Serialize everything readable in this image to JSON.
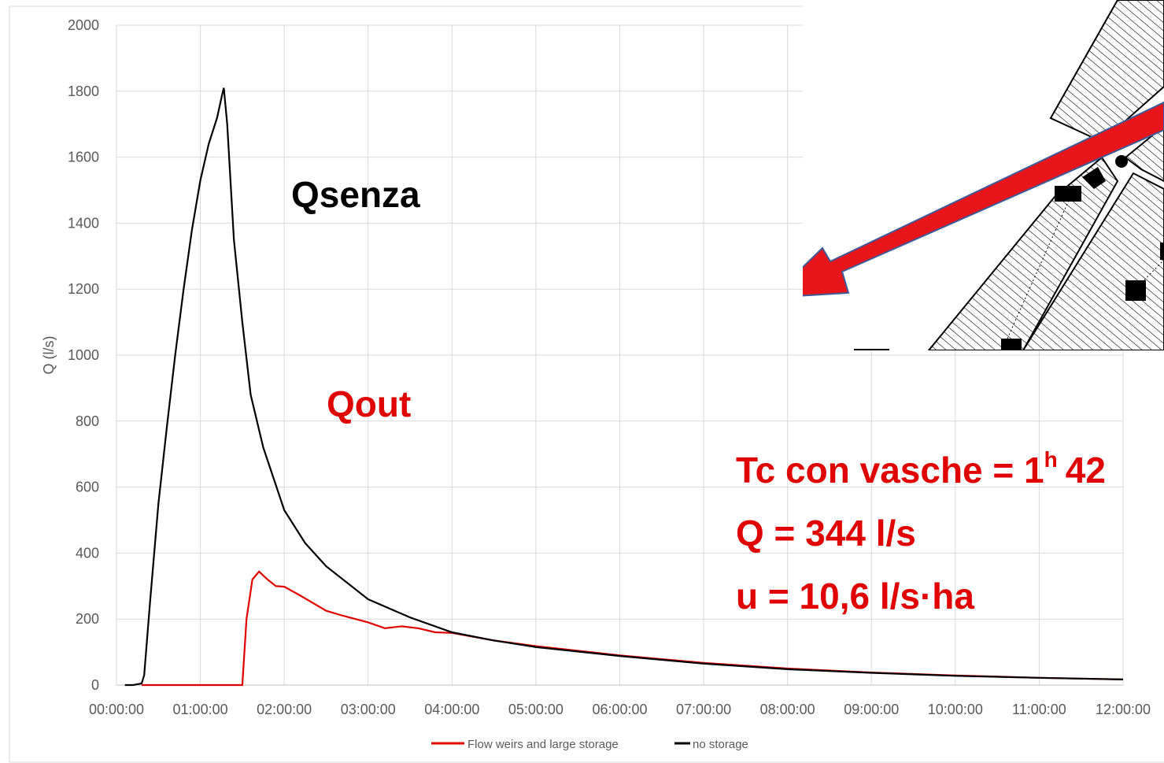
{
  "chart_data": {
    "type": "line",
    "ylabel": "Q (l/s)",
    "xlim": [
      0,
      12
    ],
    "ylim": [
      0,
      2000
    ],
    "yticks": [
      0,
      200,
      400,
      600,
      800,
      1000,
      1200,
      1400,
      1600,
      1800,
      2000
    ],
    "xticks": [
      {
        "value": 0,
        "label": "00:00:00"
      },
      {
        "value": 1,
        "label": "01:00:00"
      },
      {
        "value": 2,
        "label": "02:00:00"
      },
      {
        "value": 3,
        "label": "03:00:00"
      },
      {
        "value": 4,
        "label": "04:00:00"
      },
      {
        "value": 5,
        "label": "05:00:00"
      },
      {
        "value": 6,
        "label": "06:00:00"
      },
      {
        "value": 7,
        "label": "07:00:00"
      },
      {
        "value": 8,
        "label": "08:00:00"
      },
      {
        "value": 9,
        "label": "09:00:00"
      },
      {
        "value": 10,
        "label": "10:00:00"
      },
      {
        "value": 11,
        "label": "11:00:00"
      },
      {
        "value": 12,
        "label": "12:00:00"
      }
    ],
    "grid": true,
    "series": [
      {
        "name": "Flow weirs and large storage",
        "color": "#e00000",
        "x": [
          0.3,
          1.5,
          1.55,
          1.62,
          1.7,
          1.8,
          1.9,
          2.0,
          2.2,
          2.5,
          2.7,
          3.0,
          3.2,
          3.4,
          3.6,
          3.8,
          4.0,
          4.5,
          5,
          6,
          7,
          8,
          9,
          10,
          11,
          12
        ],
        "values": [
          0,
          0,
          200,
          320,
          344,
          320,
          300,
          298,
          270,
          225,
          210,
          190,
          172,
          178,
          172,
          160,
          158,
          135,
          118,
          90,
          67,
          50,
          38,
          29,
          22,
          17
        ]
      },
      {
        "name": "no storage",
        "color": "#000000",
        "x": [
          0.1,
          0.2,
          0.3,
          0.33,
          0.4,
          0.5,
          0.6,
          0.7,
          0.8,
          0.9,
          1.0,
          1.1,
          1.2,
          1.26,
          1.28,
          1.32,
          1.4,
          1.5,
          1.6,
          1.75,
          2.0,
          2.25,
          2.5,
          3.0,
          3.5,
          4.0,
          4.5,
          5,
          6,
          7,
          8,
          9,
          10,
          11,
          12
        ],
        "values": [
          0,
          0,
          5,
          30,
          250,
          550,
          780,
          1000,
          1200,
          1380,
          1530,
          1640,
          1720,
          1790,
          1810,
          1700,
          1350,
          1100,
          880,
          720,
          530,
          430,
          360,
          260,
          205,
          160,
          135,
          115,
          88,
          65,
          48,
          37,
          28,
          22,
          17
        ]
      }
    ],
    "annotations": [
      {
        "text": "Qsenza",
        "color": "#000000"
      },
      {
        "text": "Qout",
        "color": "#e00000"
      },
      {
        "text": "Tc con vasche = 1",
        "color": "#e00000"
      },
      {
        "text": "h",
        "color": "#e00000"
      },
      {
        "text": "42",
        "color": "#e00000"
      },
      {
        "text": "Q = 344 l/s",
        "color": "#e00000"
      },
      {
        "text": "u = 10,6 l/s·ha",
        "color": "#e00000"
      }
    ]
  }
}
